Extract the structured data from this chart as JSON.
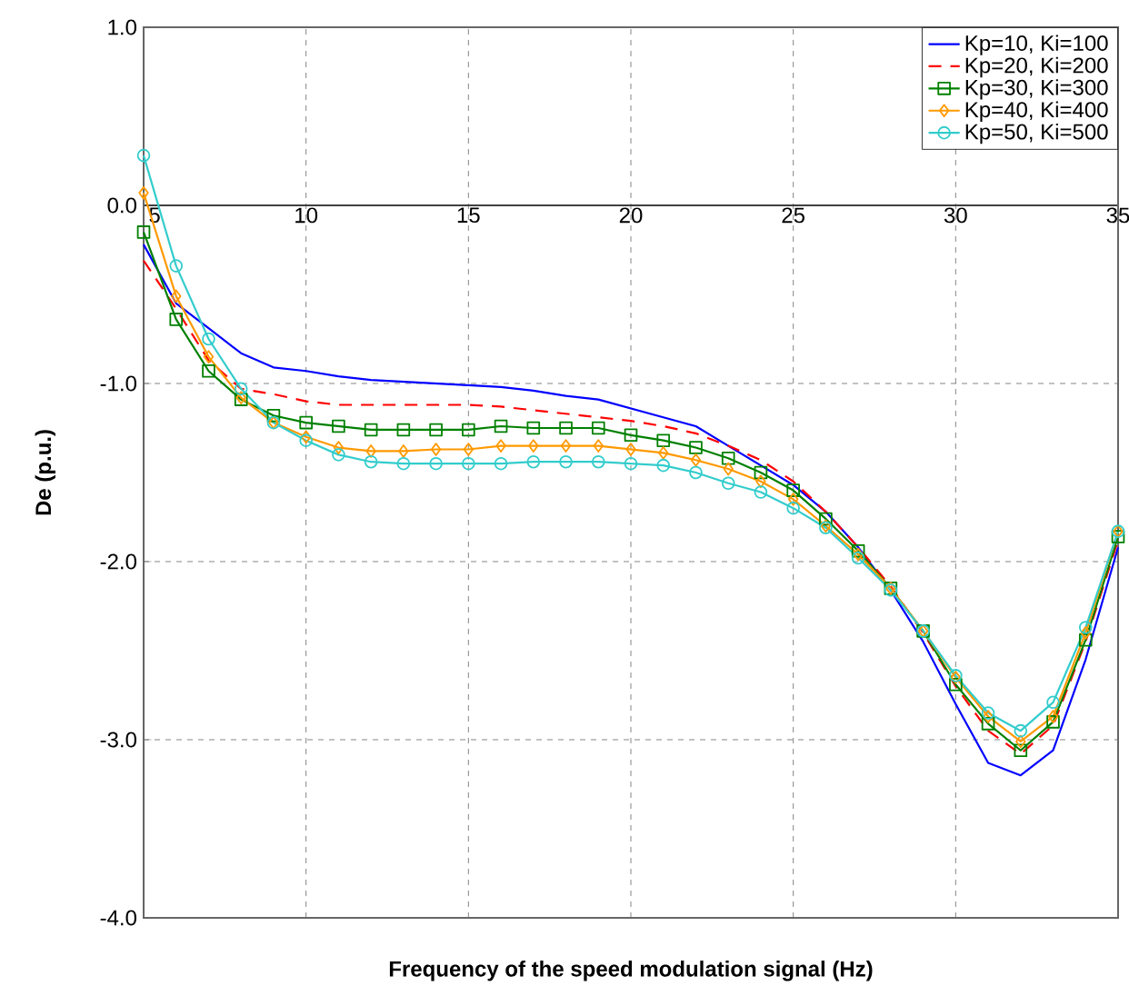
{
  "chart_data": {
    "type": "line",
    "xlabel": "Frequency of the speed modulation signal (Hz)",
    "ylabel": "De (p.u.)",
    "x": [
      5,
      6,
      7,
      8,
      9,
      10,
      11,
      12,
      13,
      14,
      15,
      16,
      17,
      18,
      19,
      20,
      21,
      22,
      23,
      24,
      25,
      26,
      27,
      28,
      29,
      30,
      31,
      32,
      33,
      34,
      35
    ],
    "series": [
      {
        "name": "Kp=10, Ki=100",
        "color": "#0000ff",
        "marker": "none",
        "line_style": "solid",
        "values": [
          -0.22,
          -0.55,
          -0.69,
          -0.83,
          -0.91,
          -0.93,
          -0.96,
          -0.98,
          -0.99,
          -1.0,
          -1.01,
          -1.02,
          -1.04,
          -1.07,
          -1.09,
          -1.14,
          -1.19,
          -1.24,
          -1.35,
          -1.46,
          -1.57,
          -1.72,
          -1.92,
          -2.16,
          -2.45,
          -2.8,
          -3.13,
          -3.2,
          -3.06,
          -2.55,
          -1.92
        ]
      },
      {
        "name": "Kp=20, Ki=200",
        "color": "#ff0000",
        "marker": "none",
        "line_style": "dashed",
        "values": [
          -0.31,
          -0.58,
          -0.87,
          -1.03,
          -1.06,
          -1.1,
          -1.12,
          -1.12,
          -1.12,
          -1.12,
          -1.12,
          -1.13,
          -1.15,
          -1.17,
          -1.19,
          -1.21,
          -1.24,
          -1.28,
          -1.35,
          -1.43,
          -1.55,
          -1.72,
          -1.92,
          -2.14,
          -2.4,
          -2.7,
          -2.95,
          -3.08,
          -2.92,
          -2.45,
          -1.88
        ]
      },
      {
        "name": "Kp=30, Ki=300",
        "color": "#008000",
        "marker": "square",
        "line_style": "solid",
        "values": [
          -0.15,
          -0.64,
          -0.93,
          -1.09,
          -1.18,
          -1.22,
          -1.24,
          -1.26,
          -1.26,
          -1.26,
          -1.26,
          -1.24,
          -1.25,
          -1.25,
          -1.25,
          -1.29,
          -1.32,
          -1.36,
          -1.42,
          -1.5,
          -1.6,
          -1.76,
          -1.94,
          -2.15,
          -2.39,
          -2.69,
          -2.91,
          -3.06,
          -2.9,
          -2.44,
          -1.86
        ]
      },
      {
        "name": "Kp=40, Ki=400",
        "color": "#ff9900",
        "marker": "diamond",
        "line_style": "solid",
        "values": [
          0.07,
          -0.51,
          -0.85,
          -1.08,
          -1.22,
          -1.3,
          -1.36,
          -1.38,
          -1.38,
          -1.37,
          -1.37,
          -1.35,
          -1.35,
          -1.35,
          -1.35,
          -1.37,
          -1.39,
          -1.43,
          -1.48,
          -1.55,
          -1.65,
          -1.8,
          -1.96,
          -2.15,
          -2.39,
          -2.65,
          -2.87,
          -3.01,
          -2.87,
          -2.4,
          -1.83
        ]
      },
      {
        "name": "Kp=50, Ki=500",
        "color": "#33cccc",
        "marker": "circle",
        "line_style": "solid",
        "values": [
          0.28,
          -0.34,
          -0.75,
          -1.03,
          -1.22,
          -1.32,
          -1.4,
          -1.44,
          -1.45,
          -1.45,
          -1.45,
          -1.45,
          -1.44,
          -1.44,
          -1.44,
          -1.45,
          -1.46,
          -1.5,
          -1.56,
          -1.61,
          -1.7,
          -1.81,
          -1.98,
          -2.16,
          -2.39,
          -2.64,
          -2.85,
          -2.95,
          -2.79,
          -2.37,
          -1.83
        ]
      }
    ],
    "xlim": [
      5,
      35
    ],
    "xticks": [
      5,
      10,
      15,
      20,
      25,
      30,
      35
    ],
    "ylim": [
      -4,
      1
    ],
    "yticks": [
      {
        "value": -4,
        "label": "-4.0"
      },
      {
        "value": -3,
        "label": "-3.0"
      },
      {
        "value": -2,
        "label": "-2.0"
      },
      {
        "value": -1,
        "label": "-1.0"
      },
      {
        "value": 0,
        "label": "0.0"
      },
      {
        "value": 1,
        "label": "1.0"
      }
    ],
    "grid": true,
    "legend": "top right"
  }
}
